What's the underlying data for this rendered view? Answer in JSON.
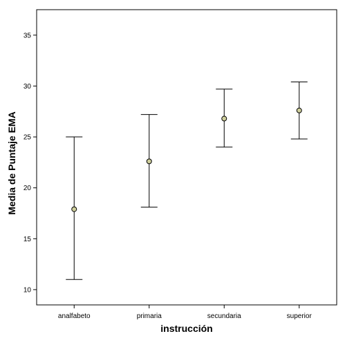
{
  "chart_data": {
    "type": "scatter",
    "subtype": "error-bar",
    "xlabel": "instrucción",
    "ylabel": "Media de Puntaje EMA",
    "categories": [
      "analfabeto",
      "primaria",
      "secundaria",
      "superior"
    ],
    "means": [
      17.9,
      22.6,
      26.8,
      27.6
    ],
    "lower": [
      11.0,
      18.1,
      24.0,
      24.8
    ],
    "upper": [
      25.0,
      27.2,
      29.7,
      30.4
    ],
    "ylim": [
      8.5,
      37.5
    ],
    "yticks": [
      "10",
      "15",
      "20",
      "25",
      "30",
      "35"
    ],
    "grid": false,
    "legend": "none",
    "colors": {
      "marker_fill": "#cfcf9c",
      "line": "#000000",
      "background": "#ffffff"
    }
  }
}
